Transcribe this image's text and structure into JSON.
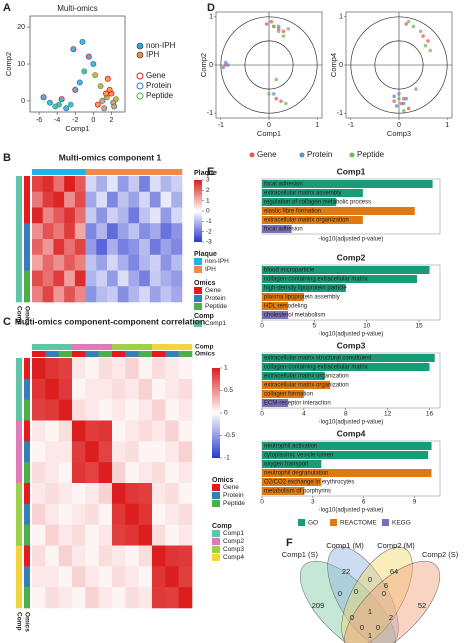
{
  "chart_data": [
    {
      "type": "scatter",
      "panel": "A",
      "title": "Multi-omics",
      "xlabel": "Comp1",
      "ylabel": "Comp2",
      "xlim": [
        -7,
        3.5
      ],
      "ylim": [
        -3,
        23
      ],
      "xticks": [
        -6,
        -4,
        -2,
        0,
        2
      ],
      "yticks": [
        0,
        10,
        20
      ],
      "omics_legend": [
        {
          "name": "Gene",
          "color": "#e41a1c"
        },
        {
          "name": "Protein",
          "color": "#377eb8"
        },
        {
          "name": "Peptide",
          "color": "#4daf4a"
        }
      ],
      "series": [
        {
          "name": "non-IPH",
          "color": "#2aa7de",
          "x": [
            -5.5,
            -4.8,
            -4.2,
            -3.5,
            -3,
            -2.5,
            -2,
            -1.5,
            -1,
            -0.5,
            0,
            -3.8,
            -2.2,
            -1.2
          ],
          "values": [
            1,
            -0.5,
            -1.5,
            0.5,
            -2,
            -1,
            3,
            5,
            8,
            12,
            10,
            -1,
            14,
            16
          ],
          "omics": [
            0,
            1,
            2,
            0,
            1,
            2,
            0,
            1,
            2,
            0,
            1,
            2,
            0,
            1
          ]
        },
        {
          "name": "IPH",
          "color": "#f08c3c",
          "x": [
            0.5,
            1,
            1.5,
            2,
            2.2,
            2.5,
            1.8,
            1.2,
            0.8,
            1.6,
            2.3,
            0.2,
            1.4
          ],
          "values": [
            -1,
            0,
            1,
            2,
            -0.5,
            0.5,
            3,
            -2,
            4,
            6,
            -1.5,
            7,
            2
          ],
          "omics": [
            0,
            1,
            2,
            0,
            1,
            2,
            0,
            1,
            2,
            0,
            1,
            2,
            0
          ]
        }
      ]
    },
    {
      "type": "heatmap",
      "panel": "B",
      "title": "Multi-omics component 1",
      "show_col_labels": false,
      "matrix": [
        [
          2.5,
          2.8,
          1.9,
          3,
          2.2,
          -0.6,
          -1.2,
          -0.4,
          -1.5,
          -0.8,
          -1.9,
          -0.5,
          -1.1,
          -0.7
        ],
        [
          1.8,
          2.6,
          2.9,
          1.5,
          2.4,
          -1.3,
          -0.5,
          -1.8,
          -0.9,
          -1.4,
          -0.6,
          -1.7,
          -0.3,
          -1.2
        ],
        [
          2.9,
          1.6,
          2.2,
          2.7,
          1.9,
          -0.8,
          -1.6,
          -0.7,
          -1.1,
          -2,
          -0.9,
          -0.4,
          -1.5,
          -0.6
        ],
        [
          1.5,
          2.3,
          1.8,
          2.6,
          1.2,
          -1.8,
          -1.1,
          -2.2,
          -1.4,
          -0.9,
          -1.7,
          -1.3,
          -2.1,
          -1.6
        ],
        [
          2.1,
          1.4,
          2.7,
          1.9,
          2.5,
          -1.5,
          -2.3,
          -1.2,
          -1.9,
          -1.6,
          -1,
          -2,
          -1.4,
          -1.8
        ],
        [
          1.2,
          2,
          1.5,
          2.2,
          1.7,
          -0.9,
          -1.4,
          -0.6,
          -1.2,
          -1.8,
          -1.1,
          -0.7,
          -1.6,
          -1
        ],
        [
          2.4,
          1.9,
          2.6,
          1.3,
          2.8,
          -1.1,
          -0.7,
          -1.5,
          -0.5,
          -1.3,
          -1.9,
          -0.8,
          -1.2,
          -1.5
        ],
        [
          1.7,
          2.5,
          1.4,
          2.3,
          1.6,
          -1.6,
          -1,
          -0.8,
          -1.7,
          -1.1,
          -0.6,
          -1.4,
          -0.9,
          -1.3
        ]
      ],
      "colorbar": {
        "title": "Plaque",
        "lim": [
          -3,
          3
        ],
        "ticks": [
          3,
          2,
          1,
          0,
          -1,
          -2,
          -3
        ]
      },
      "legends": [
        {
          "title": "Plaque",
          "names": [
            "non-IPH",
            "IPH"
          ],
          "colors": [
            "#1fb4e8",
            "#f0894a"
          ]
        },
        {
          "title": "Omics",
          "names": [
            "Gene",
            "Protein",
            "Peptide"
          ],
          "colors": [
            "#e41a1c",
            "#377eb8",
            "#4daf4a"
          ]
        },
        {
          "title": "Comp",
          "names": [
            "Comp1"
          ],
          "colors": [
            "#5cc6a7"
          ]
        }
      ],
      "row_annotations": [
        {
          "legend": 2,
          "values": [
            0,
            0,
            0,
            0,
            0,
            0,
            0,
            0
          ]
        },
        {
          "legend": 1,
          "values": [
            0,
            0,
            0,
            1,
            1,
            1,
            2,
            2
          ]
        }
      ],
      "col_annotations": [
        {
          "legend": 0,
          "values": [
            0,
            0,
            0,
            0,
            0,
            1,
            1,
            1,
            1,
            1,
            1,
            1,
            1,
            1
          ]
        }
      ]
    },
    {
      "type": "heatmap",
      "panel": "C",
      "title": "Multi-omics component-component correlation",
      "show_col_labels": true,
      "matrix": [
        [
          1,
          0.9,
          0.85,
          0.1,
          0.05,
          0.15,
          0.1,
          0.2,
          0.05,
          0.15,
          0.1,
          0.05
        ],
        [
          0.9,
          1,
          0.88,
          0.05,
          0.1,
          0.1,
          0.15,
          0.1,
          0.2,
          0.05,
          0.1,
          0.15
        ],
        [
          0.85,
          0.88,
          1,
          0.15,
          0.1,
          0.05,
          0.1,
          0.05,
          0.1,
          0.2,
          0.05,
          0.1
        ],
        [
          0.1,
          0.05,
          0.15,
          1,
          0.87,
          0.9,
          0.05,
          0.1,
          0.15,
          0.1,
          0.2,
          0.05
        ],
        [
          0.05,
          0.1,
          0.1,
          0.87,
          1,
          0.84,
          0.1,
          0.15,
          0.05,
          0.05,
          0.1,
          0.2
        ],
        [
          0.15,
          0.1,
          0.05,
          0.9,
          0.84,
          1,
          0.2,
          0.05,
          0.1,
          0.15,
          0.05,
          0.1
        ],
        [
          0.1,
          0.15,
          0.1,
          0.05,
          0.1,
          0.2,
          1,
          0.89,
          0.86,
          0.1,
          0.15,
          0.05
        ],
        [
          0.2,
          0.1,
          0.05,
          0.1,
          0.15,
          0.05,
          0.89,
          1,
          0.9,
          0.05,
          0.1,
          0.15
        ],
        [
          0.05,
          0.2,
          0.1,
          0.15,
          0.05,
          0.1,
          0.86,
          0.9,
          1,
          0.15,
          0.05,
          0.1
        ],
        [
          0.15,
          0.05,
          0.2,
          0.1,
          0.05,
          0.15,
          0.1,
          0.05,
          0.15,
          1,
          0.9,
          0.88
        ],
        [
          0.1,
          0.1,
          0.05,
          0.2,
          0.1,
          0.05,
          0.15,
          0.1,
          0.05,
          0.9,
          1,
          0.86
        ],
        [
          0.05,
          0.15,
          0.1,
          0.05,
          0.2,
          0.1,
          0.05,
          0.15,
          0.1,
          0.88,
          0.86,
          1
        ]
      ],
      "colorbar": {
        "lim": [
          -1,
          1
        ],
        "ticks": [
          1,
          0.5,
          0,
          -0.5,
          -1
        ]
      },
      "legends": [
        {
          "title": "Omics",
          "names": [
            "Gene",
            "Protein",
            "Peptide"
          ],
          "colors": [
            "#e41a1c",
            "#377eb8",
            "#4daf4a"
          ]
        },
        {
          "title": "Comp",
          "names": [
            "Comp1",
            "Comp2",
            "Comp3",
            "Comp4"
          ],
          "colors": [
            "#5cc6a7",
            "#e07ab8",
            "#9ccf4a",
            "#f2d53c"
          ]
        }
      ],
      "row_annotations": [
        {
          "legend": 1,
          "values": [
            0,
            0,
            0,
            1,
            1,
            1,
            2,
            2,
            2,
            3,
            3,
            3
          ]
        },
        {
          "legend": 0,
          "values": [
            0,
            1,
            2,
            0,
            1,
            2,
            0,
            1,
            2,
            0,
            1,
            2
          ]
        }
      ],
      "col_annotations": [
        {
          "legend": 1,
          "values": [
            0,
            0,
            0,
            1,
            1,
            1,
            2,
            2,
            2,
            3,
            3,
            3
          ]
        },
        {
          "legend": 0,
          "values": [
            0,
            1,
            2,
            0,
            1,
            2,
            0,
            1,
            2,
            0,
            1,
            2
          ]
        }
      ]
    },
    {
      "type": "circle",
      "panel": "D",
      "series": [
        {
          "name": "Gene",
          "color": "#e8585a"
        },
        {
          "name": "Protein",
          "color": "#5b8fd0"
        },
        {
          "name": "Peptide",
          "color": "#6dbb5a"
        }
      ],
      "panels": [
        {
          "xlabel": "Comp1",
          "ylabel": "Comp2",
          "xlim": [
            -1.1,
            1.1
          ],
          "ylim": [
            -1.1,
            1.1
          ],
          "xticks": [
            -1,
            0,
            1
          ],
          "yticks": [
            -1,
            0,
            1
          ],
          "points": [
            {
              "x": [
                0.1,
                0.2,
                -0.05,
                0.3,
                0.15,
                0.25,
                -0.9,
                0.05
              ],
              "values": [
                0.8,
                0.75,
                0.85,
                0.7,
                -0.7,
                -0.75,
                0,
                0.9
              ]
            },
            {
              "x": [
                -0.95,
                -0.9,
                0.1,
                0.2,
                -0.85
              ],
              "values": [
                -0.05,
                0.05,
                -0.6,
                0.8,
                0
              ]
            },
            {
              "x": [
                0.1,
                0.3,
                0.2,
                0,
                0.35,
                0.4,
                0.15
              ],
              "values": [
                0.8,
                0.6,
                0.7,
                -0.6,
                -0.8,
                0.75,
                -0.3
              ]
            }
          ]
        },
        {
          "xlabel": "Comp3",
          "ylabel": "Comp4",
          "xlim": [
            -1.1,
            1.1
          ],
          "ylim": [
            -1.1,
            1.1
          ],
          "xticks": [
            -1,
            0,
            1
          ],
          "yticks": [
            -1,
            0,
            1
          ],
          "points": [
            {
              "x": [
                0.05,
                0.1,
                -0.1,
                0.5,
                0.6,
                0.15,
                0.2
              ],
              "values": [
                -0.8,
                -0.7,
                -0.75,
                0.6,
                0.5,
                0.85,
                -0.9
              ]
            },
            {
              "x": [
                -0.05,
                0.1,
                0,
                0.15,
                -0.1
              ],
              "values": [
                -0.85,
                -0.8,
                -0.6,
                -0.7,
                -0.65
              ]
            },
            {
              "x": [
                0.2,
                0.45,
                0.55,
                0.3,
                0,
                0.1,
                0.65,
                0.35
              ],
              "values": [
                0.9,
                0.7,
                0.4,
                0.8,
                -0.7,
                -0.95,
                0.3,
                -0.5
              ]
            }
          ]
        }
      ]
    },
    {
      "type": "bar-group",
      "panel": "E",
      "legend": [
        {
          "name": "GO",
          "color": "#1a9a77"
        },
        {
          "name": "REACTOME",
          "color": "#e07a10"
        },
        {
          "name": "KEGG",
          "color": "#7b6fb5"
        }
      ],
      "subplots": [
        {
          "title": "Comp1",
          "xlabel": "-log10(adjusted p-value)",
          "xlim": [
            0,
            12
          ],
          "categories": [
            "focal adhesion",
            "extracellular matrix assembly",
            "regulation of collagen metabolic process",
            "elastic fibre formation",
            "extracellular matrix organization",
            "focal adhesion"
          ],
          "values": [
            11.5,
            6.8,
            5,
            10.3,
            6.8,
            2
          ],
          "sources": [
            0,
            0,
            0,
            1,
            1,
            2
          ]
        },
        {
          "title": "Comp2",
          "xlabel": "-log10(adjusted p-value)",
          "xlim": [
            0,
            17
          ],
          "xticks": [
            0,
            5,
            10,
            15
          ],
          "categories": [
            "blood microparticle",
            "collagen-containing extracellular matrix",
            "high-density lipoprotein particle",
            "plasma lipoprotein assembly",
            "HDL remodeling",
            "cholesterol metabolism"
          ],
          "values": [
            16,
            14.8,
            8,
            4,
            2.5,
            2.5
          ],
          "sources": [
            0,
            0,
            0,
            1,
            1,
            2
          ]
        },
        {
          "title": "Comp3",
          "xlabel": "-log10(adjusted p-value)",
          "xlim": [
            0,
            17
          ],
          "xticks": [
            0,
            4,
            8,
            12,
            16
          ],
          "categories": [
            "extracellular matrix structural constituent",
            "collagen-containing extracellular matrix",
            "extracellular matrix organization",
            "extracellular matrix organization",
            "collagen formation",
            "ECM-receptor interaction"
          ],
          "values": [
            16.5,
            16,
            6,
            6.5,
            4,
            2.5
          ],
          "sources": [
            0,
            0,
            0,
            1,
            1,
            2
          ]
        },
        {
          "title": "Comp4",
          "xlabel": "-log10(adjusted p-value)",
          "xlim": [
            0,
            10.5
          ],
          "xticks": [
            0,
            3,
            6,
            9
          ],
          "categories": [
            "neutrophil activation",
            "cytoplasmic vesicle lumen",
            "oxygen transport",
            "neutrophil degranulation",
            "O2/CO2 exchange in erythrocytes",
            "metabolism of porphyrins"
          ],
          "values": [
            10,
            9.8,
            3.5,
            10,
            3.5,
            2.5
          ],
          "sources": [
            0,
            0,
            0,
            1,
            1,
            1
          ]
        }
      ]
    },
    {
      "type": "venn",
      "panel": "F",
      "sets": [
        {
          "name": "Comp1 (S)",
          "color": "#7fcba4"
        },
        {
          "name": "Comp1 (M)",
          "color": "#8fb3e0"
        },
        {
          "name": "Comp2 (M)",
          "color": "#f2d86a"
        },
        {
          "name": "Comp2 (S)",
          "color": "#f0a07a"
        }
      ],
      "regions": [
        209,
        22,
        0,
        64,
        52,
        0,
        6,
        0,
        1,
        0,
        0,
        2,
        0,
        1,
        0
      ]
    }
  ]
}
